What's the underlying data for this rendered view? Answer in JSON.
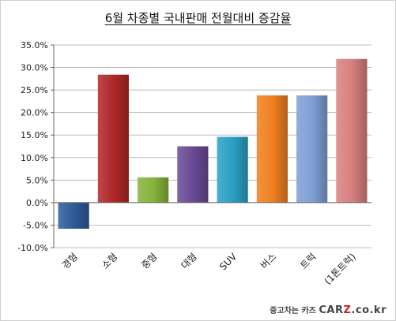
{
  "chart_data": {
    "type": "bar",
    "title": "6월 차종별 국내판매 전월대비 증감율",
    "categories": [
      "경형",
      "소형",
      "중형",
      "대형",
      "SUV",
      "버스",
      "트럭",
      "(1톤트럭)"
    ],
    "values": [
      -5.8,
      28.4,
      5.6,
      12.5,
      14.6,
      23.8,
      23.8,
      31.9
    ],
    "colors": [
      "#2e5b9a",
      "#b02828",
      "#86b33c",
      "#6a4a96",
      "#2aa0c4",
      "#f08020",
      "#7f9fd4",
      "#d98080"
    ],
    "ylim": [
      -10,
      35
    ],
    "ytick_step": 5,
    "ytick_labels": [
      "35.0%",
      "30.0%",
      "25.0%",
      "20.0%",
      "15.0%",
      "10.0%",
      "5.0%",
      "0.0%",
      "-5.0%",
      "-10.0%"
    ],
    "grid": true,
    "legend": "none",
    "xlabel": "",
    "ylabel": ""
  },
  "watermark": {
    "prefix": "중고차는 카즈",
    "brand_main": "CAR",
    "brand_z": "Z",
    "brand_tail": ".co.kr"
  }
}
